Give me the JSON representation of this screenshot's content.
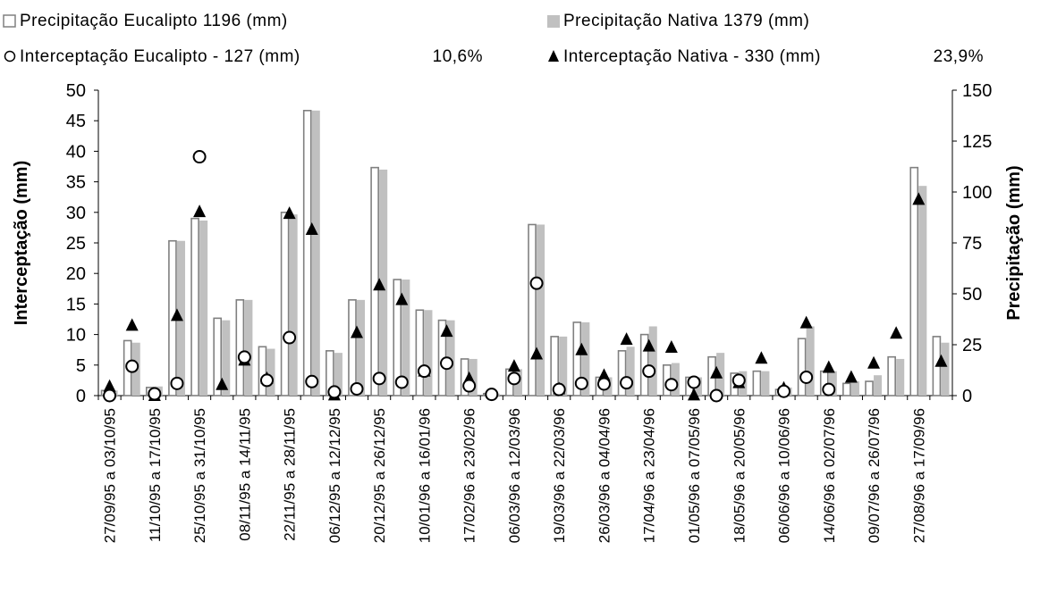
{
  "chart_data": {
    "type": "bar",
    "title": "",
    "y_left": {
      "label": "Interceptação (mm)",
      "range": [
        0,
        50
      ],
      "ticks": [
        "0",
        "5",
        "10",
        "15",
        "20",
        "25",
        "30",
        "35",
        "40",
        "45",
        "50"
      ]
    },
    "y_right": {
      "label": "Precipitação (mm)",
      "range": [
        0,
        150
      ],
      "ticks": [
        "0",
        "25",
        "50",
        "75",
        "100",
        "125",
        "150"
      ]
    },
    "legend": {
      "placement": "top",
      "items": [
        {
          "marker": "hollow-square",
          "label": "Precipitação Eucalipto 1196 (mm)",
          "extra": ""
        },
        {
          "marker": "gray-square",
          "label": "Precipitação Nativa 1379 (mm)",
          "extra": ""
        },
        {
          "marker": "hollow-circle",
          "label": "Interceptação Eucalipto - 127 (mm)",
          "extra": "10,6%"
        },
        {
          "marker": "black-triangle",
          "label": "Interceptação Nativa - 330 (mm)",
          "extra": "23,9%"
        }
      ]
    },
    "category_labels": [
      {
        "index": 0,
        "label": "27/09/95  a  03/10/95"
      },
      {
        "index": 2,
        "label": "11/10/95  a  17/10/95"
      },
      {
        "index": 4,
        "label": "25/10/95  a  31/10/95"
      },
      {
        "index": 6,
        "label": "08/11/95  a  14/11/95"
      },
      {
        "index": 8,
        "label": "22/11/95  a  28/11/95"
      },
      {
        "index": 10,
        "label": "06/12/95  a  12/12/95"
      },
      {
        "index": 12,
        "label": "20/12/95  a  26/12/95"
      },
      {
        "index": 14,
        "label": "10/01/96 a 16/01/96"
      },
      {
        "index": 16,
        "label": "17/02/96 a 23/02/96"
      },
      {
        "index": 18,
        "label": "06/03/96 a 12/03/96"
      },
      {
        "index": 20,
        "label": "19/03/96 a 22/03/96"
      },
      {
        "index": 22,
        "label": "26/03/96 a 04/04/96"
      },
      {
        "index": 24,
        "label": "17/04/96 a 23/04/96"
      },
      {
        "index": 26,
        "label": "01/05/96 a 07/05/96"
      },
      {
        "index": 28,
        "label": "18/05/96 a 20/05/96"
      },
      {
        "index": 30,
        "label": "06/06/96 a 10/06/96"
      },
      {
        "index": 32,
        "label": "14/06/96 a 02/07/96"
      },
      {
        "index": 34,
        "label": "09/07/96 a 26/07/96"
      },
      {
        "index": 36,
        "label": "27/08/96 a 17/09/96"
      }
    ],
    "series": [
      {
        "name": "Precipitação Eucalipto 1196 (mm)",
        "axis": "right",
        "kind": "bar",
        "style": "hollow",
        "values": [
          2.5,
          27,
          4,
          76,
          87,
          38,
          47,
          24,
          90,
          140,
          22,
          47,
          112,
          57,
          42,
          37,
          18,
          1,
          13,
          84,
          29,
          36,
          9,
          22,
          30,
          15,
          9,
          19,
          11,
          12,
          3,
          28,
          12,
          6,
          7,
          19,
          112,
          29
        ]
      },
      {
        "name": "Precipitação Nativa 1379 (mm)",
        "axis": "right",
        "kind": "bar",
        "style": "gray",
        "values": [
          2.5,
          26,
          4.5,
          76,
          86,
          37,
          47,
          23,
          89,
          140,
          21,
          47,
          111,
          57,
          42,
          37,
          18,
          1,
          13,
          84,
          29,
          36,
          9,
          24,
          34,
          16,
          9,
          21,
          12,
          12,
          4,
          34,
          12,
          7,
          10,
          18,
          103,
          26
        ]
      },
      {
        "name": "Interceptação Eucalipto - 127 (mm)",
        "axis": "left",
        "kind": "marker",
        "marker": "circle",
        "values": [
          0,
          4.8,
          0.3,
          2.0,
          39.1,
          null,
          6.3,
          2.5,
          9.5,
          2.3,
          0.6,
          1.1,
          2.8,
          2.2,
          4.0,
          5.3,
          1.6,
          0.2,
          2.8,
          18.4,
          1.0,
          2.0,
          1.9,
          2.1,
          4.0,
          1.8,
          2.2,
          0,
          2.5,
          null,
          0.7,
          3.0,
          1.0,
          null,
          null,
          null,
          null,
          null
        ]
      },
      {
        "name": "Interceptação Nativa - 330 (mm)",
        "axis": "left",
        "kind": "marker",
        "marker": "triangle",
        "values": [
          1.5,
          11.5,
          0,
          13.1,
          30.1,
          1.8,
          5.8,
          2.8,
          29.8,
          27.2,
          0.1,
          10.3,
          18.1,
          15.7,
          4.0,
          10.5,
          2.8,
          null,
          4.8,
          6.8,
          1.1,
          7.5,
          3.3,
          9.2,
          8.1,
          7.9,
          0.1,
          3.7,
          2.1,
          6.1,
          1.2,
          11.9,
          4.6,
          3.0,
          5.3,
          10.2,
          32.1,
          5.6
        ]
      }
    ]
  }
}
